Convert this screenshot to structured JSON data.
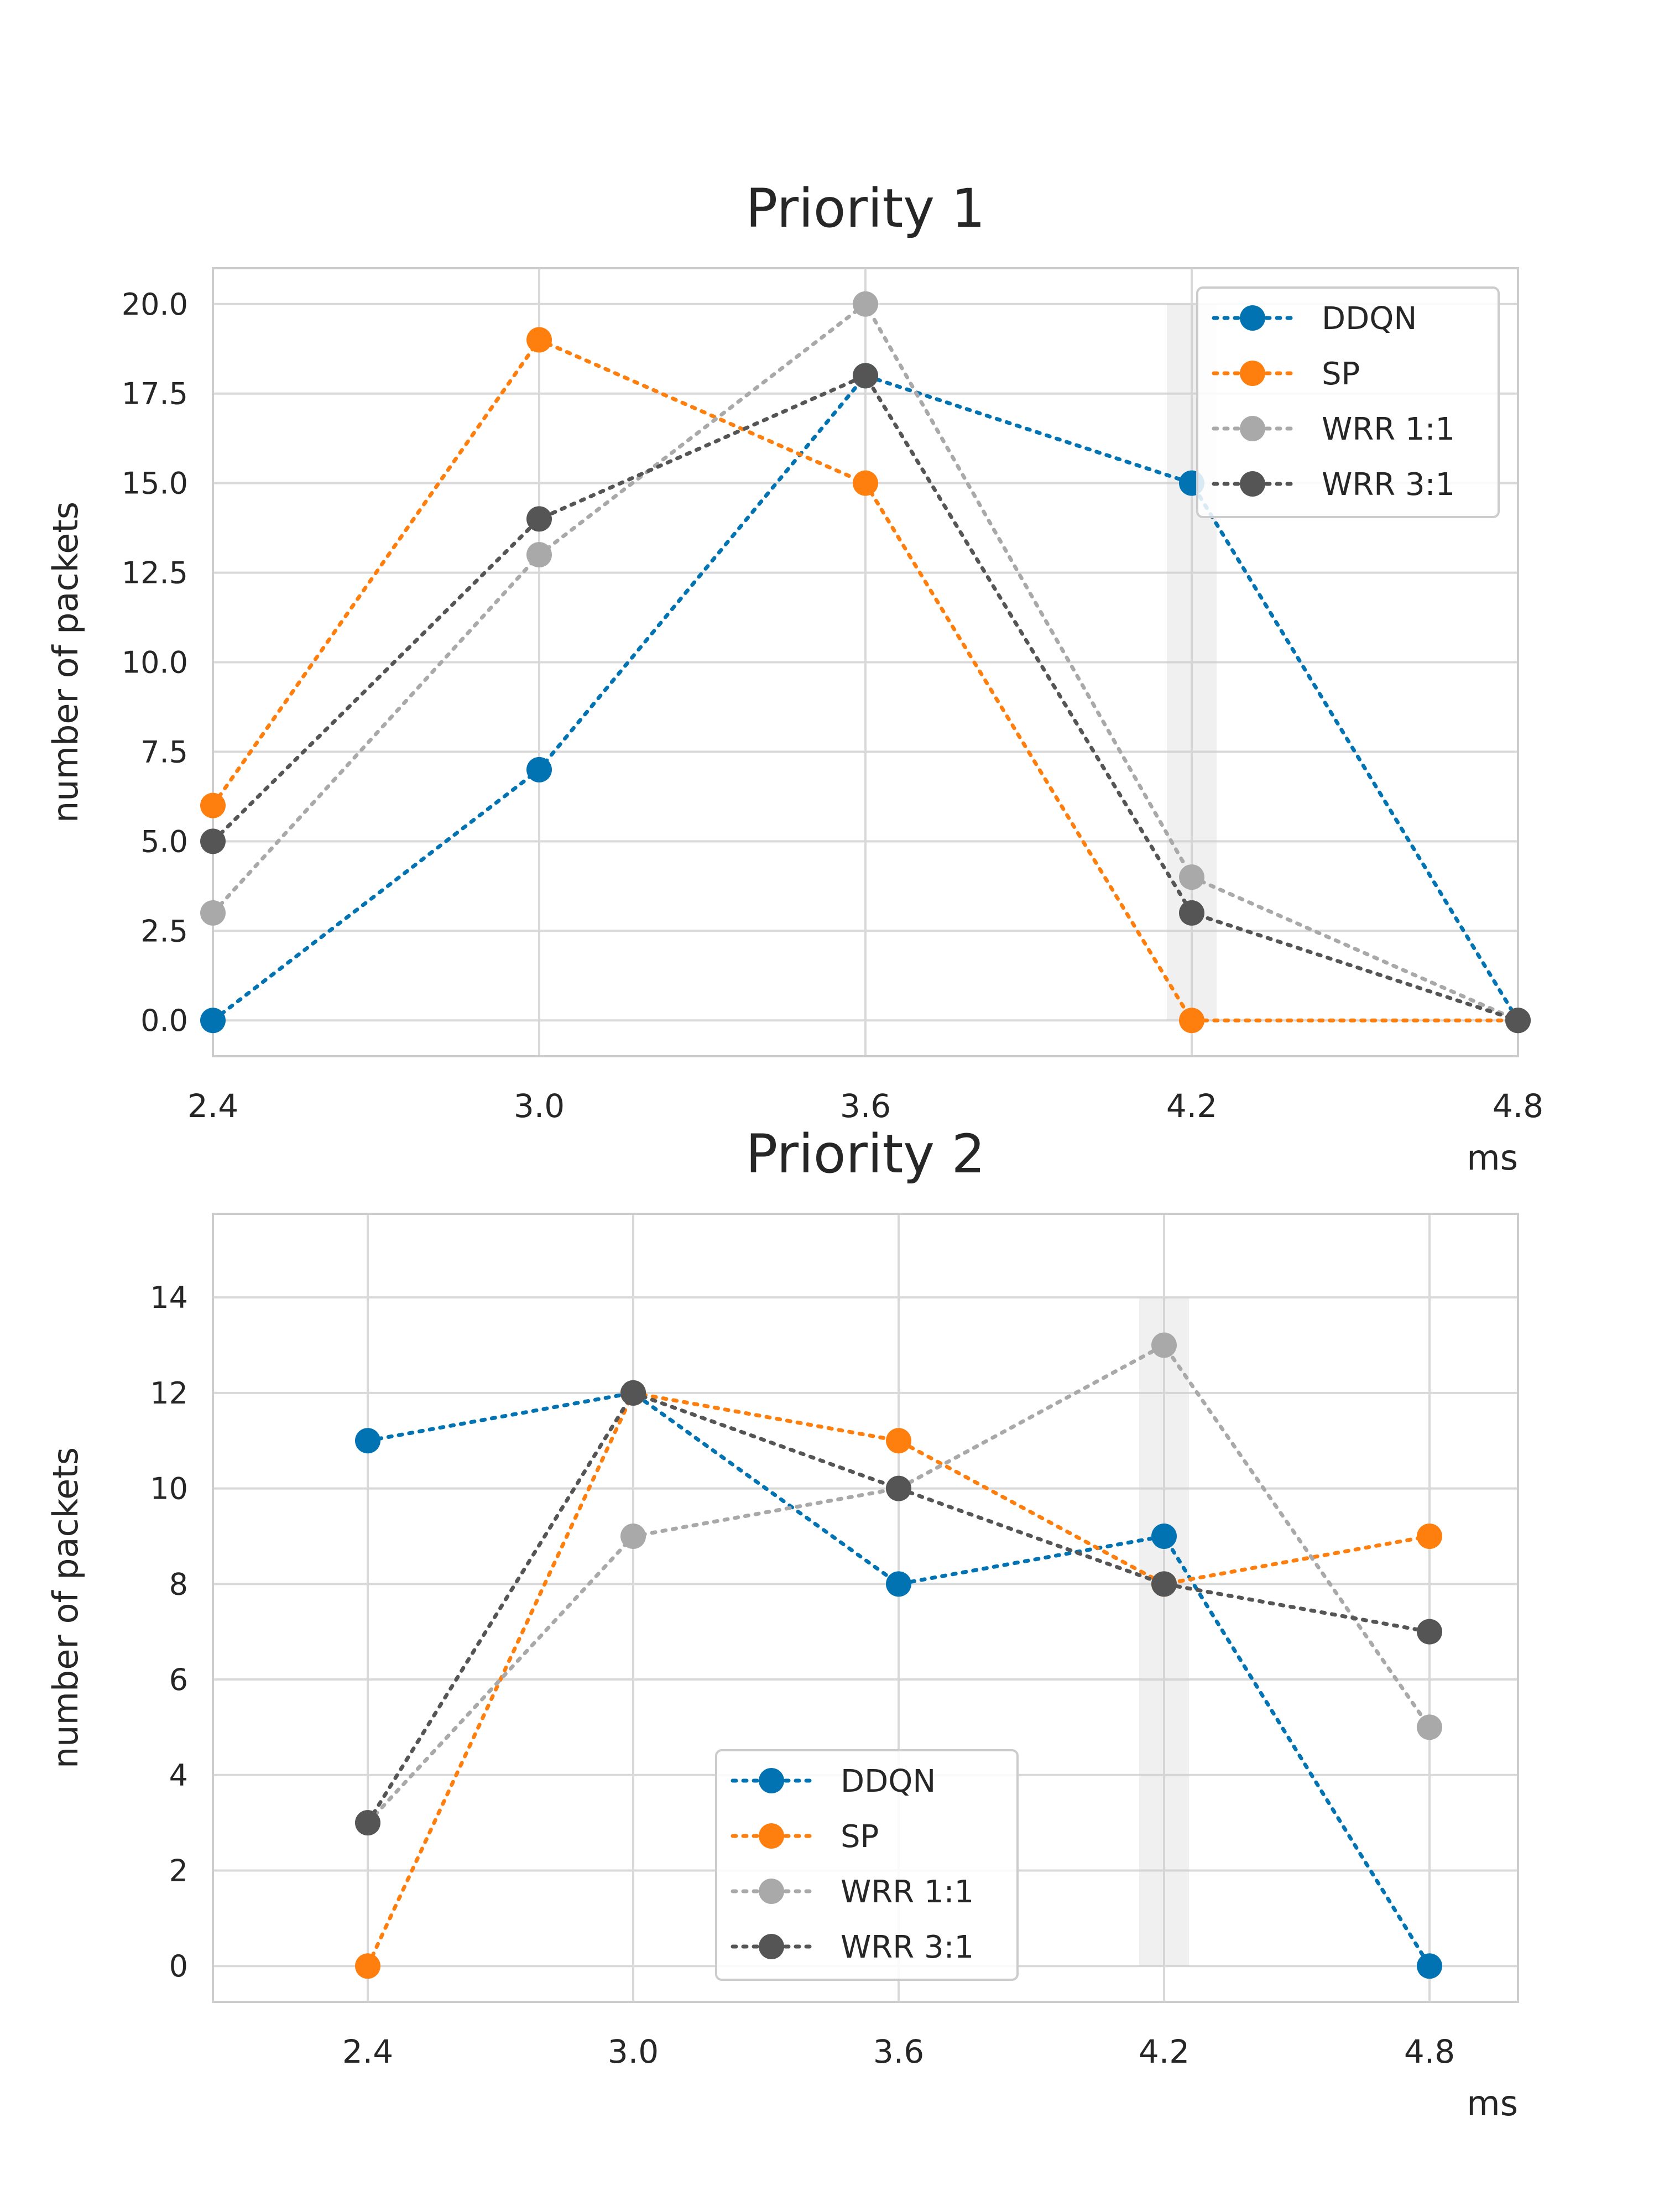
{
  "chart_data": [
    {
      "type": "line",
      "title": "Priority 1",
      "xlabel": "ms",
      "ylabel": "number of packets",
      "x": [
        2.4,
        3.0,
        3.6,
        4.2,
        4.8
      ],
      "x_tick_labels": [
        "2.4",
        "3.0",
        "3.6",
        "4.2",
        "4.8"
      ],
      "y_ticks": [
        0.0,
        2.5,
        5.0,
        7.5,
        10.0,
        12.5,
        15.0,
        17.5,
        20.0
      ],
      "y_tick_labels": [
        "0.0",
        "2.5",
        "5.0",
        "7.5",
        "10.0",
        "12.5",
        "15.0",
        "17.5",
        "20.0"
      ],
      "ylim": [
        -1,
        21
      ],
      "highlight_x": 4.2,
      "grid": true,
      "legend_position": "top-right",
      "series": [
        {
          "name": "DDQN",
          "color": "#0173b2",
          "values": [
            0,
            7,
            18,
            15,
            0
          ]
        },
        {
          "name": "SP",
          "color": "#ff7f0e",
          "values": [
            6,
            19,
            15,
            0,
            0
          ]
        },
        {
          "name": "WRR 1:1",
          "color": "#a9a9a9",
          "values": [
            3,
            13,
            20,
            4,
            0
          ]
        },
        {
          "name": "WRR 3:1",
          "color": "#555555",
          "values": [
            5,
            14,
            18,
            3,
            0
          ]
        }
      ]
    },
    {
      "type": "line",
      "title": "Priority 2",
      "xlabel": "ms",
      "ylabel": "number of packets",
      "x": [
        2.4,
        3.0,
        3.6,
        4.2,
        4.8
      ],
      "x_tick_labels": [
        "2.4",
        "3.0",
        "3.6",
        "4.2",
        "4.8"
      ],
      "y_ticks": [
        0,
        2,
        4,
        6,
        8,
        10,
        12,
        14
      ],
      "y_tick_labels": [
        "0",
        "2",
        "4",
        "6",
        "8",
        "10",
        "12",
        "14"
      ],
      "ylim": [
        -0.75,
        15.75
      ],
      "highlight_x": 4.2,
      "grid": true,
      "legend_position": "bottom-center",
      "series": [
        {
          "name": "DDQN",
          "color": "#0173b2",
          "values": [
            11,
            12,
            8,
            9,
            0
          ]
        },
        {
          "name": "SP",
          "color": "#ff7f0e",
          "values": [
            0,
            12,
            11,
            8,
            9
          ]
        },
        {
          "name": "WRR 1:1",
          "color": "#a9a9a9",
          "values": [
            3,
            9,
            10,
            13,
            5
          ]
        },
        {
          "name": "WRR 3:1",
          "color": "#555555",
          "values": [
            3,
            12,
            10,
            8,
            7
          ]
        }
      ]
    }
  ]
}
